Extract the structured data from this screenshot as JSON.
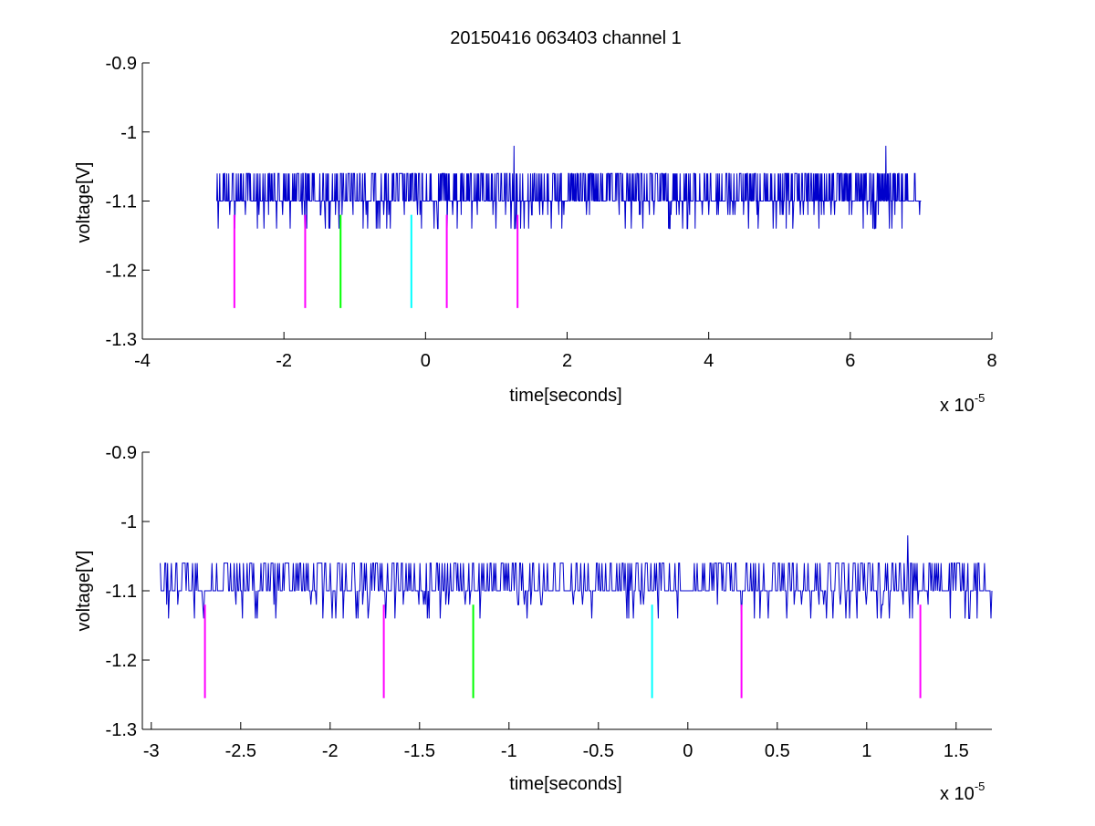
{
  "chart_data": [
    {
      "type": "line",
      "title": "20150416 063403 channel 1",
      "xlabel": "time[seconds]",
      "ylabel": "voltage[V]",
      "x_exponent_label": "x 10",
      "x_exponent_power": "-5",
      "xlim": [
        -4,
        8
      ],
      "ylim": [
        -1.3,
        -0.9
      ],
      "x_ticks": [
        "-4",
        "-2",
        "0",
        "2",
        "4",
        "6",
        "8"
      ],
      "y_ticks": [
        "-1.3",
        "-1.2",
        "-1.1",
        "-1",
        "-0.9"
      ],
      "grid": false,
      "series": [
        {
          "color": "#0000cc",
          "x_range": [
            -2.95,
            7.0
          ],
          "baseline": -1.1,
          "levels": [
            -1.06,
            -1.14
          ],
          "spikes": [
            [
              1.25,
              -1.02
            ],
            [
              6.5,
              -1.02
            ]
          ]
        }
      ],
      "markers": [
        {
          "x": -2.7,
          "y_top": -1.12,
          "y_bottom": -1.255,
          "color": "#ff00ff"
        },
        {
          "x": -1.7,
          "y_top": -1.12,
          "y_bottom": -1.255,
          "color": "#ff00ff"
        },
        {
          "x": -1.2,
          "y_top": -1.12,
          "y_bottom": -1.255,
          "color": "#00ff00"
        },
        {
          "x": -0.2,
          "y_top": -1.12,
          "y_bottom": -1.255,
          "color": "#00ffff"
        },
        {
          "x": 0.3,
          "y_top": -1.12,
          "y_bottom": -1.255,
          "color": "#ff00ff"
        },
        {
          "x": 1.3,
          "y_top": -1.12,
          "y_bottom": -1.255,
          "color": "#ff00ff"
        }
      ]
    },
    {
      "type": "line",
      "title": "",
      "xlabel": "time[seconds]",
      "ylabel": "voltage[V]",
      "x_exponent_label": "x 10",
      "x_exponent_power": "-5",
      "xlim": [
        -3.05,
        1.7
      ],
      "ylim": [
        -1.3,
        -0.9
      ],
      "x_ticks": [
        "-3",
        "-2.5",
        "-2",
        "-1.5",
        "-1",
        "-0.5",
        "0",
        "0.5",
        "1",
        "1.5"
      ],
      "x_tick_values": [
        -3,
        -2.5,
        -2,
        -1.5,
        -1,
        -0.5,
        0,
        0.5,
        1,
        1.5
      ],
      "y_ticks": [
        "-1.3",
        "-1.2",
        "-1.1",
        "-1",
        "-0.9"
      ],
      "grid": false,
      "series": [
        {
          "color": "#0000cc",
          "x_range": [
            -2.95,
            1.7
          ],
          "baseline": -1.1,
          "levels": [
            -1.06,
            -1.14
          ],
          "spikes": [
            [
              1.23,
              -1.02
            ]
          ]
        }
      ],
      "markers": [
        {
          "x": -2.7,
          "y_top": -1.12,
          "y_bottom": -1.255,
          "color": "#ff00ff"
        },
        {
          "x": -1.7,
          "y_top": -1.12,
          "y_bottom": -1.255,
          "color": "#ff00ff"
        },
        {
          "x": -1.2,
          "y_top": -1.12,
          "y_bottom": -1.255,
          "color": "#00ff00"
        },
        {
          "x": -0.2,
          "y_top": -1.12,
          "y_bottom": -1.255,
          "color": "#00ffff"
        },
        {
          "x": 0.3,
          "y_top": -1.12,
          "y_bottom": -1.255,
          "color": "#ff00ff"
        },
        {
          "x": 1.3,
          "y_top": -1.12,
          "y_bottom": -1.255,
          "color": "#ff00ff"
        }
      ]
    }
  ]
}
